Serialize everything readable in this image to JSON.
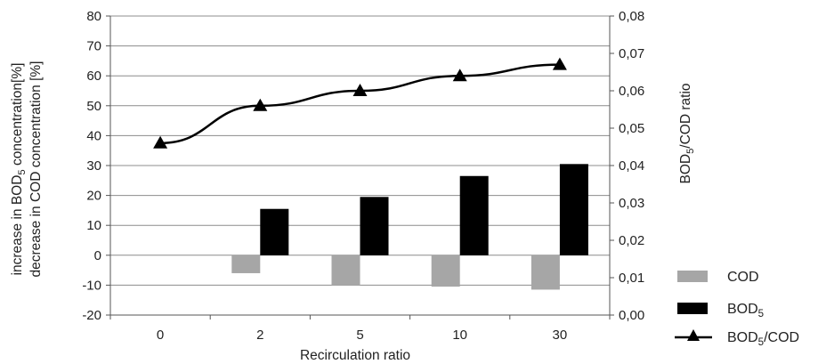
{
  "chart_data": {
    "type": "bar",
    "categories": [
      "0",
      "2",
      "5",
      "10",
      "30"
    ],
    "xlabel": "Recirculation ratio",
    "ylabel_left_line1": {
      "prefix": "increase in BOD",
      "sub": "5",
      "suffix": " concentration[%]"
    },
    "ylabel_left_line2": "decrease in COD concentration [%]",
    "ylabel_right": {
      "prefix": "BOD",
      "sub": "5",
      "suffix": "/COD ratio"
    },
    "ylim_left": [
      -20,
      80
    ],
    "yticks_left": [
      "-20",
      "-10",
      "0",
      "10",
      "20",
      "30",
      "40",
      "50",
      "60",
      "70",
      "80"
    ],
    "ylim_right": [
      0,
      0.08
    ],
    "yticks_right": [
      "0,00",
      "0,01",
      "0,02",
      "0,03",
      "0,04",
      "0,05",
      "0,06",
      "0,07",
      "0,08"
    ],
    "grid": true,
    "legend_position": "bottom-right",
    "series": [
      {
        "name": "COD",
        "kind": "bar",
        "axis": "left",
        "color": "#a6a6a6",
        "values": [
          0,
          -6,
          -10,
          -10.5,
          -11.5
        ]
      },
      {
        "name": "BOD5",
        "name_prefix": "BOD",
        "name_sub": "5",
        "kind": "bar",
        "axis": "left",
        "color": "#000000",
        "values": [
          0,
          15.5,
          19.5,
          26.5,
          30.5
        ]
      },
      {
        "name": "BOD5/COD",
        "name_prefix": "BOD",
        "name_sub": "5",
        "name_suffix": "/COD",
        "kind": "line",
        "axis": "right",
        "color": "#000000",
        "marker": "triangle",
        "values": [
          0.046,
          0.056,
          0.06,
          0.064,
          0.067
        ]
      }
    ]
  }
}
